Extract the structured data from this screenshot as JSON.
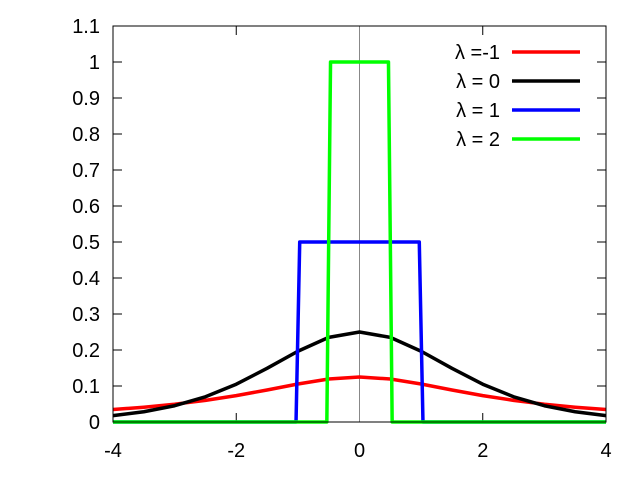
{
  "chart_data": {
    "type": "line",
    "title": "",
    "xlabel": "",
    "ylabel": "",
    "xlim": [
      -4,
      4
    ],
    "ylim": [
      0,
      1.1
    ],
    "grid": false,
    "legend_position": "top-right",
    "x_ticks": [
      "-4",
      "-2",
      "0",
      "2",
      "4"
    ],
    "y_ticks": [
      "0",
      "0.1",
      "0.2",
      "0.3",
      "0.4",
      "0.5",
      "0.6",
      "0.7",
      "0.8",
      "0.9",
      "1",
      "1.1"
    ],
    "series": [
      {
        "name": "λ =-1",
        "color": "#ff0000",
        "x": [
          -4,
          -3.5,
          -3,
          -2.5,
          -2,
          -1.5,
          -1,
          -0.5,
          0,
          0.5,
          1,
          1.5,
          2,
          2.5,
          3,
          3.5,
          4
        ],
        "y": [
          0.0346,
          0.0411,
          0.0495,
          0.0601,
          0.0732,
          0.0889,
          0.1056,
          0.1194,
          0.125,
          0.1194,
          0.1056,
          0.0889,
          0.0732,
          0.0601,
          0.0495,
          0.0411,
          0.0346
        ]
      },
      {
        "name": "λ = 0",
        "color": "#000000",
        "x": [
          -4,
          -3.5,
          -3,
          -2.5,
          -2,
          -1.5,
          -1,
          -0.5,
          0,
          0.5,
          1,
          1.5,
          2,
          2.5,
          3,
          3.5,
          4
        ],
        "y": [
          0.0177,
          0.0285,
          0.0452,
          0.0701,
          0.105,
          0.1491,
          0.1966,
          0.235,
          0.25,
          0.235,
          0.1966,
          0.1491,
          0.105,
          0.0701,
          0.0452,
          0.0285,
          0.0177
        ]
      },
      {
        "name": "λ = 1",
        "color": "#0000ff",
        "x": [
          -4,
          -1.03,
          -0.97,
          0.97,
          1.03,
          4
        ],
        "y": [
          0,
          0,
          0.5,
          0.5,
          0,
          0
        ]
      },
      {
        "name": "λ = 2",
        "color": "#00ff00",
        "x": [
          -4,
          -0.53,
          -0.47,
          0.47,
          0.53,
          4
        ],
        "y": [
          0,
          0,
          1,
          1,
          0,
          0
        ]
      }
    ]
  }
}
